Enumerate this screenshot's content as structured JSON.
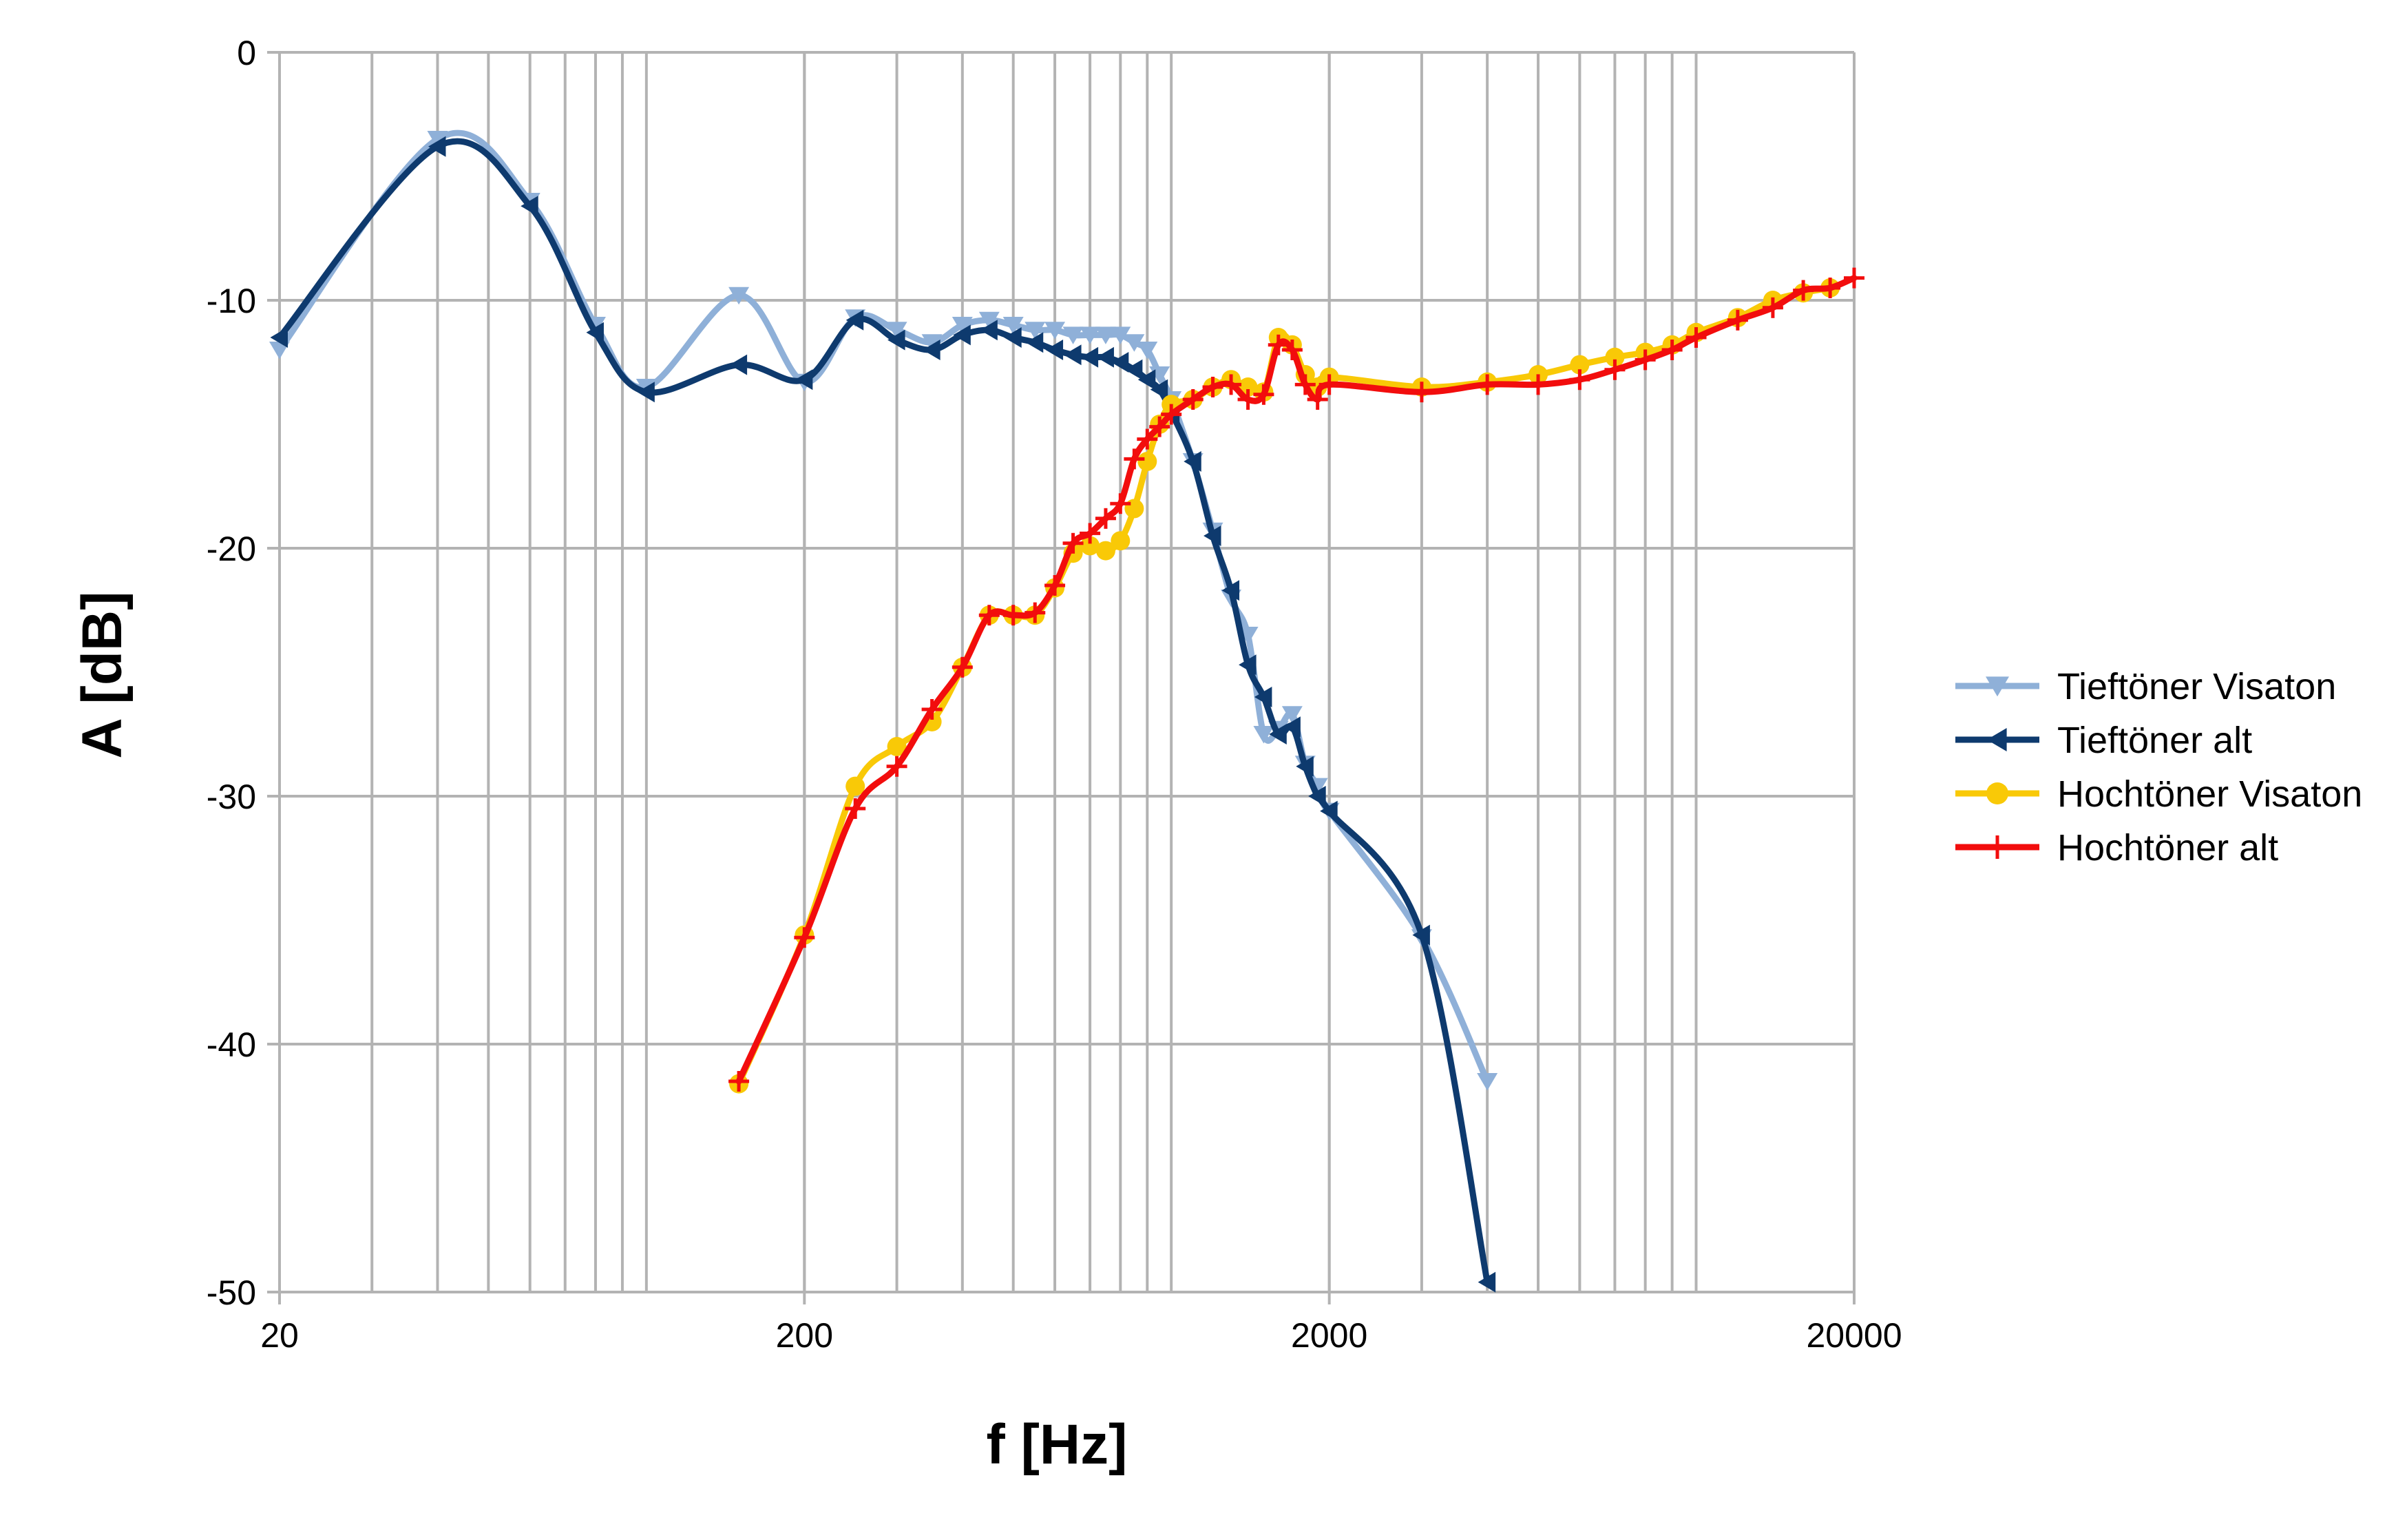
{
  "chart_data": {
    "type": "line",
    "title": "",
    "xlabel": "f [Hz]",
    "ylabel": "A [dB]",
    "x_scale": "log",
    "xlim": [
      20,
      20000
    ],
    "ylim": [
      -50,
      0
    ],
    "x_ticks": [
      20,
      200,
      2000,
      20000
    ],
    "x_tick_labels": [
      "20",
      "200",
      "2000",
      "20000"
    ],
    "y_ticks": [
      0,
      -10,
      -20,
      -30,
      -40,
      -50
    ],
    "y_tick_labels": [
      "0",
      "-10",
      "-20",
      "-30",
      "-40",
      "-50"
    ],
    "grid": true,
    "legend_position": "right",
    "series": [
      {
        "name": "Tieftöner Visaton",
        "color": "#8fb0d8",
        "marker": "triangle-down",
        "x": [
          20,
          40,
          60,
          80,
          100,
          150,
          200,
          250,
          300,
          350,
          400,
          450,
          500,
          550,
          600,
          650,
          700,
          750,
          800,
          850,
          900,
          950,
          1000,
          1100,
          1200,
          1300,
          1400,
          1500,
          1600,
          1700,
          1800,
          1900,
          2000,
          3000,
          4000
        ],
        "y": [
          -12,
          -3.5,
          -6,
          -11,
          -13.5,
          -9.8,
          -13.3,
          -10.7,
          -11.2,
          -11.7,
          -11,
          -10.8,
          -11,
          -11.2,
          -11.2,
          -11.4,
          -11.4,
          -11.4,
          -11.4,
          -11.7,
          -12,
          -13,
          -14,
          -16.5,
          -19.3,
          -22,
          -23.5,
          -27.5,
          -27.3,
          -26.7,
          -28.7,
          -29.6,
          -30.6,
          -35.7,
          -41.5
        ]
      },
      {
        "name": "Tieftöner alt",
        "color": "#0e3a6e",
        "marker": "triangle-left",
        "x": [
          20,
          40,
          60,
          80,
          100,
          150,
          200,
          250,
          300,
          350,
          400,
          450,
          500,
          550,
          600,
          650,
          700,
          750,
          800,
          850,
          900,
          950,
          1000,
          1100,
          1200,
          1300,
          1400,
          1500,
          1600,
          1700,
          1800,
          1900,
          2000,
          3000,
          4000
        ],
        "y": [
          -11.5,
          -3.8,
          -6.2,
          -11.3,
          -13.7,
          -12.6,
          -13.2,
          -10.8,
          -11.6,
          -12,
          -11.4,
          -11.2,
          -11.5,
          -11.7,
          -12,
          -12.2,
          -12.3,
          -12.3,
          -12.5,
          -12.8,
          -13.2,
          -13.6,
          -14.5,
          -16.5,
          -19.5,
          -21.7,
          -24.7,
          -26,
          -27.5,
          -27.2,
          -28.8,
          -30,
          -30.6,
          -35.6,
          -49.6
        ]
      },
      {
        "name": "Hochtöner Visaton",
        "color": "#f9c907",
        "marker": "circle",
        "x": [
          150,
          200,
          250,
          300,
          350,
          400,
          450,
          500,
          550,
          600,
          650,
          700,
          750,
          800,
          850,
          900,
          950,
          1000,
          1100,
          1200,
          1300,
          1400,
          1500,
          1600,
          1700,
          1800,
          1900,
          2000,
          3000,
          4000,
          5000,
          6000,
          7000,
          8000,
          9000,
          10000,
          12000,
          14000,
          16000,
          18000
        ],
        "y": [
          -41.6,
          -35.6,
          -29.6,
          -28,
          -27,
          -24.8,
          -22.7,
          -22.7,
          -22.7,
          -21.6,
          -20.2,
          -19.9,
          -20.1,
          -19.7,
          -18.4,
          -16.5,
          -15,
          -14.2,
          -14,
          -13.5,
          -13.2,
          -13.5,
          -13.7,
          -11.5,
          -11.8,
          -13,
          -13.5,
          -13.1,
          -13.5,
          -13.3,
          -13,
          -12.6,
          -12.3,
          -12.1,
          -11.8,
          -11.3,
          -10.7,
          -10,
          -9.7,
          -9.5
        ]
      },
      {
        "name": "Hochtöner alt",
        "color": "#f20d0d",
        "marker": "cross",
        "x": [
          150,
          200,
          250,
          300,
          350,
          400,
          450,
          500,
          550,
          600,
          650,
          700,
          750,
          800,
          850,
          900,
          950,
          1000,
          1100,
          1200,
          1300,
          1400,
          1500,
          1600,
          1700,
          1800,
          1900,
          2000,
          3000,
          4000,
          5000,
          6000,
          7000,
          8000,
          9000,
          10000,
          12000,
          14000,
          16000,
          18000,
          20000
        ],
        "y": [
          -41.5,
          -35.7,
          -30.5,
          -28.8,
          -26.5,
          -24.8,
          -22.7,
          -22.7,
          -22.6,
          -21.5,
          -19.8,
          -19.4,
          -18.8,
          -18.2,
          -16.4,
          -15.6,
          -15.1,
          -14.6,
          -14,
          -13.5,
          -13.4,
          -14,
          -13.8,
          -11.8,
          -12,
          -13.4,
          -14,
          -13.4,
          -13.7,
          -13.4,
          -13.4,
          -13.2,
          -12.8,
          -12.4,
          -12,
          -11.5,
          -10.8,
          -10.3,
          -9.6,
          -9.5,
          -9.1
        ]
      }
    ]
  }
}
